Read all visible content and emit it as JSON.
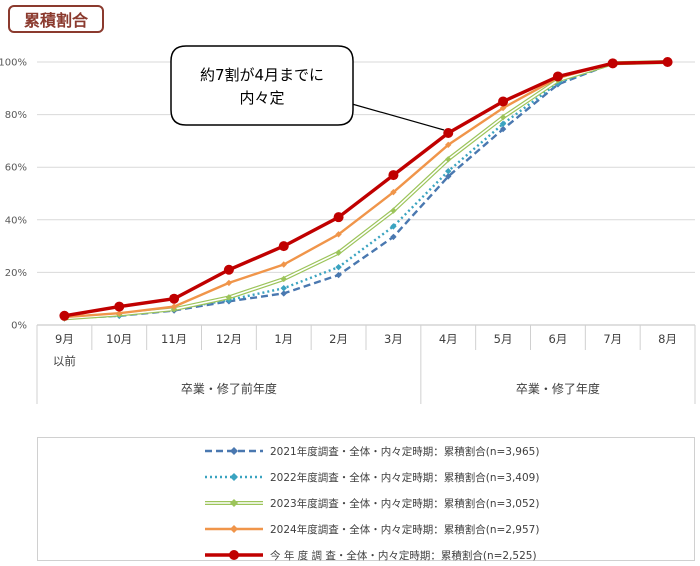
{
  "title_tag": "累積割合",
  "callout": {
    "line1": "約7割が4月までに",
    "line2": "内々定"
  },
  "chart_data": {
    "type": "line",
    "categories": [
      "9月",
      "10月",
      "11月",
      "12月",
      "1月",
      "2月",
      "3月",
      "4月",
      "5月",
      "6月",
      "7月",
      "8月"
    ],
    "category_sublabels": [
      "以前",
      "",
      "",
      "",
      "",
      "",
      "",
      "",
      "",
      "",
      "",
      ""
    ],
    "groups": [
      {
        "label": "卒業・修了前年度",
        "from": 0,
        "to": 6
      },
      {
        "label": "卒業・修了年度",
        "from": 7,
        "to": 11
      }
    ],
    "ylim": [
      0,
      100
    ],
    "yticks": [
      "0%",
      "20%",
      "40%",
      "60%",
      "80%",
      "100%"
    ],
    "grid": true,
    "legend_position": "bottom",
    "series": [
      {
        "name": "2021年度調査・全体・内々定時期：累積割合(n=3,965)",
        "color": "#4a78b0",
        "style": "dashed",
        "values": [
          2.5,
          3.5,
          5.5,
          9,
          12,
          19,
          33.5,
          56.5,
          74.5,
          91.5,
          99.5,
          100
        ]
      },
      {
        "name": "2022年度調査・全体・内々定時期：累積割合(n=3,409)",
        "color": "#3aa3c0",
        "style": "dotted",
        "values": [
          2.5,
          3.5,
          6,
          9.5,
          14,
          22,
          37.5,
          58.5,
          76.5,
          92,
          99.5,
          100
        ]
      },
      {
        "name": "2023年度調査・全体・内々定時期：累積割合(n=3,052)",
        "color": "#9cc45a",
        "style": "double",
        "values": [
          2.5,
          4,
          6,
          10.5,
          17.5,
          27.5,
          43.5,
          63,
          79,
          93,
          99.5,
          100
        ]
      },
      {
        "name": "2024年度調査・全体・内々定時期：累積割合(n=2,957)",
        "color": "#f0954a",
        "style": "solid",
        "values": [
          3,
          4.5,
          7,
          16,
          23,
          34.5,
          50.5,
          68.5,
          82.5,
          94,
          99.5,
          100
        ]
      },
      {
        "name": "今 年 度 調 査・全体・内々定時期：累積割合(n=2,525)",
        "color": "#c00000",
        "style": "bold",
        "values": [
          3.5,
          7,
          10,
          21,
          30,
          41,
          57,
          73,
          85,
          94.5,
          99.5,
          100
        ]
      }
    ]
  }
}
